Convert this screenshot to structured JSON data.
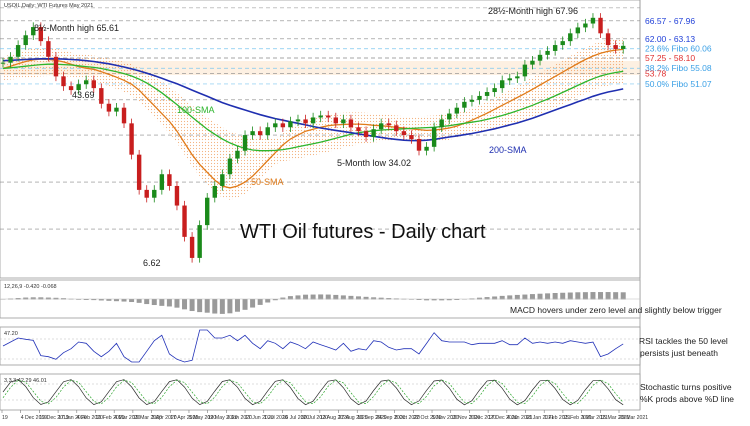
{
  "chart_data": {
    "type": "line",
    "symbol_caption": "USOIL,Daily: WTI Futures May 2021",
    "title": "WTI Oil futures - Daily chart",
    "x_tick_labels": [
      "19",
      "4 Dec 2019",
      "19 Dec 2019",
      "17 Jan 2020",
      "4 Feb 2020",
      "19 Feb 2020",
      "4 Mar 2020",
      "19 Mar 2020",
      "3 Apr 2020",
      "17 Apr 2020",
      "5 May 2020",
      "19 May 2020",
      "3 Jun 2020",
      "17 Jun 2020",
      "1 Jul 2020",
      "16 Jul 2020",
      "30 Jul 2020",
      "13 Aug 2020",
      "27 Aug 2020",
      "10 Sep 2020",
      "24 Sep 2020",
      "8 Oct 2020",
      "22 Oct 2020",
      "5 Nov 2020",
      "19 Nov 2020",
      "3 Dec 2020",
      "17 Dec 2020",
      "4 Jan 2021",
      "18 Jan 2021",
      "1 Feb 2021",
      "15 Feb 2021",
      "1 Mar 2021",
      "15 Mar 2021",
      "29 Mar 2021"
    ],
    "price_levels": [
      {
        "label": "66.57 - 67.96",
        "value": 67.2,
        "color": "#1f3fd8"
      },
      {
        "label": "62.00 - 63.13",
        "value": 62.6,
        "color": "#1f3fd8"
      },
      {
        "label": "23.6% Fibo 60.06",
        "value": 60.06,
        "color": "#3aa0e6"
      },
      {
        "label": "57.25 - 58.10",
        "value": 57.7,
        "color": "#e03030"
      },
      {
        "label": "38.2% Fibo 55.08",
        "value": 55.08,
        "color": "#3aa0e6"
      },
      {
        "label": "53.78",
        "value": 53.78,
        "color": "#e03030"
      },
      {
        "label": "50.0% Fibo 51.07",
        "value": 51.07,
        "color": "#3aa0e6"
      }
    ],
    "annotations": [
      {
        "text": "8½-Month high 65.61"
      },
      {
        "text": "28½-Month high 67.96"
      },
      {
        "text": "43.69"
      },
      {
        "text": "100-SMA"
      },
      {
        "text": "50-SMA"
      },
      {
        "text": "200-SMA"
      },
      {
        "text": "5-Month low 34.02"
      },
      {
        "text": "6.62"
      }
    ],
    "price_series": {
      "name": "WTI close",
      "x": [
        0,
        4,
        8,
        12,
        16,
        20,
        24,
        28,
        32,
        36,
        40,
        44,
        48,
        52,
        56,
        60,
        64,
        68,
        72,
        76,
        80,
        84,
        88,
        92,
        96,
        100,
        104,
        108,
        112,
        116,
        120,
        124,
        128,
        132,
        136,
        140,
        144,
        148,
        152,
        156,
        160,
        164,
        168,
        172,
        176,
        180,
        184,
        188,
        192,
        196,
        200,
        204,
        208,
        212,
        216,
        220,
        224,
        228,
        232,
        236,
        240,
        244,
        248,
        252,
        256,
        260,
        264,
        268,
        272,
        276,
        280,
        284,
        288,
        292,
        296,
        300,
        304,
        308,
        312,
        316,
        320,
        324,
        328
      ],
      "values": [
        56.5,
        58,
        61,
        63.5,
        65.6,
        62,
        58,
        53,
        50.5,
        49.5,
        51,
        52,
        50,
        46,
        44,
        45,
        41,
        33,
        24,
        22,
        24,
        28,
        25,
        20,
        12,
        6.62,
        15,
        22,
        25,
        28,
        32,
        34,
        38,
        39,
        38,
        40,
        41,
        40,
        41.5,
        42,
        41,
        42.5,
        43,
        42.5,
        41,
        42,
        40,
        39,
        37.5,
        39.5,
        41,
        40.5,
        39,
        38,
        37,
        34.02,
        35,
        40,
        42,
        43.5,
        45,
        46.5,
        47,
        48,
        49,
        50,
        52,
        52.5,
        53,
        56,
        57,
        58.5,
        59.5,
        61,
        62,
        64,
        65.5,
        66.5,
        67.96,
        64,
        61,
        60,
        60.8
      ]
    },
    "sma_series": [
      {
        "name": "50-SMA",
        "color": "#e07b1a",
        "values": [
          55,
          55.6,
          56.2,
          56.8,
          57.2,
          57.4,
          57.3,
          57.1,
          56.7,
          56.1,
          55.5,
          55.1,
          54.8,
          54.2,
          53.5,
          52.8,
          52,
          51,
          49.5,
          47.5,
          45.5,
          43.5,
          41.5,
          39,
          36,
          33,
          30.5,
          28.5,
          26.5,
          25,
          24.5,
          25,
          26,
          27.5,
          29.5,
          31.5,
          33.5,
          35.5,
          37,
          38,
          39,
          39.5,
          40,
          40.4,
          40.6,
          40.7,
          40.8,
          40.8,
          40.7,
          40.5,
          40.4,
          40.2,
          40,
          39.8,
          39.6,
          39.4,
          39.2,
          39.3,
          39.5,
          39.8,
          40.3,
          41,
          41.8,
          42.7,
          43.6,
          44.6,
          45.6,
          46.6,
          47.6,
          48.6,
          49.7,
          50.8,
          51.9,
          53,
          54.1,
          55.2,
          56.3,
          57.3,
          58.2,
          58.9,
          59.4,
          59.7,
          59.9
        ]
      },
      {
        "name": "100-SMA",
        "color": "#2db52d",
        "values": [
          55,
          55.2,
          55.4,
          55.6,
          55.8,
          56,
          56.1,
          56.1,
          56,
          55.9,
          55.7,
          55.5,
          55.3,
          55,
          54.6,
          54.2,
          53.7,
          53.1,
          52.3,
          51.3,
          50.1,
          48.8,
          47.3,
          45.8,
          44.2,
          42.6,
          41,
          39.5,
          38.2,
          37,
          36,
          35.2,
          34.6,
          34.2,
          34,
          34,
          34.1,
          34.3,
          34.6,
          35,
          35.4,
          35.8,
          36.2,
          36.7,
          37.2,
          37.7,
          38.2,
          38.6,
          38.9,
          39.1,
          39.3,
          39.4,
          39.5,
          39.6,
          39.7,
          39.8,
          39.9,
          40,
          40.2,
          40.4,
          40.7,
          41,
          41.3,
          41.6,
          42,
          42.5,
          43,
          43.6,
          44.2,
          44.9,
          45.6,
          46.4,
          47.2,
          48,
          48.9,
          49.8,
          50.7,
          51.6,
          52.4,
          53.1,
          53.6,
          54,
          54.3
        ]
      },
      {
        "name": "200-SMA",
        "color": "#1f2fb0",
        "values": [
          57,
          57.1,
          57.2,
          57.3,
          57.4,
          57.5,
          57.5,
          57.5,
          57.4,
          57.3,
          57.2,
          57,
          56.8,
          56.5,
          56.2,
          55.8,
          55.4,
          54.9,
          54.4,
          53.8,
          53.2,
          52.5,
          51.8,
          51.1,
          50.3,
          49.5,
          48.7,
          47.9,
          47.1,
          46.3,
          45.6,
          45,
          44.4,
          43.8,
          43.2,
          42.7,
          42.2,
          41.8,
          41.4,
          41,
          40.6,
          40.2,
          39.8,
          39.5,
          39.2,
          38.9,
          38.6,
          38.3,
          38,
          37.7,
          37.4,
          37.1,
          36.9,
          36.7,
          36.6,
          36.6,
          36.7,
          36.9,
          37.2,
          37.5,
          37.8,
          38.1,
          38.4,
          38.8,
          39.2,
          39.6,
          40.1,
          40.6,
          41.1,
          41.7,
          42.3,
          43,
          43.7,
          44.4,
          45.1,
          45.8,
          46.5,
          47.2,
          47.9,
          48.5,
          49,
          49.4,
          49.8
        ]
      }
    ],
    "macd": {
      "label": "12,26,9 -0.420 -0.068",
      "caption": "MACD hovers under zero level and slightly below trigger"
    },
    "rsi": {
      "label": "47.20",
      "caption_line1": "RSI tackles the 50 level",
      "caption_line2": "persists just beneath"
    },
    "stochastic": {
      "label": "3,3,3 42.29 46.01",
      "caption_line1": "Stochastic turns positive",
      "caption_line2": "%K prods above %D line"
    }
  }
}
